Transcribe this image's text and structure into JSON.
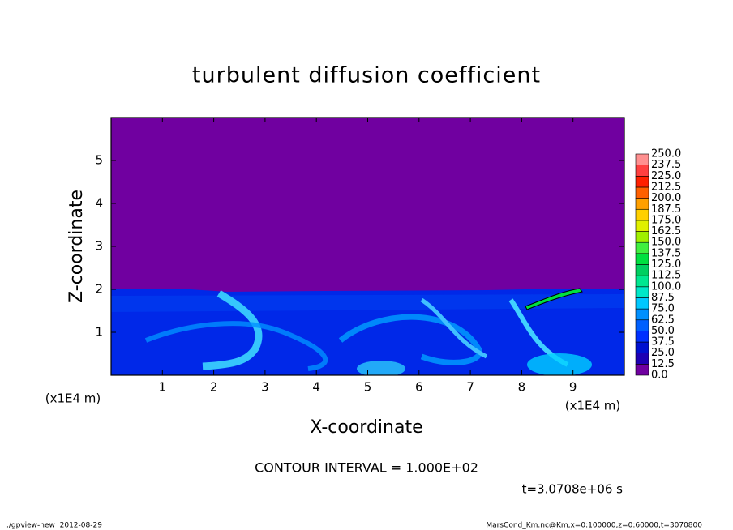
{
  "chart_data": {
    "type": "contour",
    "title": "turbulent diffusion coefficient",
    "x_label": "X-coordinate",
    "y_label": "Z-coordinate",
    "x_unit": "(x1E4 m)",
    "y_unit": "(x1E4 m)",
    "xlim": [
      0,
      10
    ],
    "xticks": [
      1,
      2,
      3,
      4,
      5,
      6,
      7,
      8,
      9
    ],
    "ylim": [
      0,
      6
    ],
    "yticks": [
      1,
      2,
      3,
      4,
      5
    ],
    "contour_note": "CONTOUR INTERVAL = 1.000E+02",
    "time_label": "t=3.0708e+06 s",
    "footer_left": "./gpview-new  2012-08-29",
    "footer_right": "MarsCond_Km.nc@Km,x=0:100000,z=0:60000,t=3070800",
    "colorbar": {
      "levels": [
        {
          "value": 0,
          "label": "0.0"
        },
        12.5,
        {
          "value": 25,
          "label": "25.0"
        },
        37.5,
        {
          "value": 50,
          "label": "50.0"
        },
        62.5,
        {
          "value": 75,
          "label": "75.0"
        },
        87.5,
        {
          "value": 100,
          "label": "100.0"
        },
        112.5,
        {
          "value": 125,
          "label": "125.0"
        },
        137.5,
        {
          "value": 150,
          "label": "150.0"
        },
        162.5,
        {
          "value": 175,
          "label": "175.0"
        },
        187.5,
        {
          "value": 200,
          "label": "200.0"
        },
        212.5,
        {
          "value": 225,
          "label": "225.0"
        },
        237.5,
        {
          "value": 250,
          "label": "250.0"
        }
      ],
      "colors": [
        "#7000a0",
        "#1e00b4",
        "#0010d0",
        "#0030ff",
        "#0060ff",
        "#0090ff",
        "#00c8ff",
        "#00e8c8",
        "#00e890",
        "#00d060",
        "#00e040",
        "#40f040",
        "#a0f000",
        "#e0f000",
        "#ffd000",
        "#ffa000",
        "#ff6000",
        "#ff2000",
        "#ff4040",
        "#ff9090"
      ]
    }
  }
}
